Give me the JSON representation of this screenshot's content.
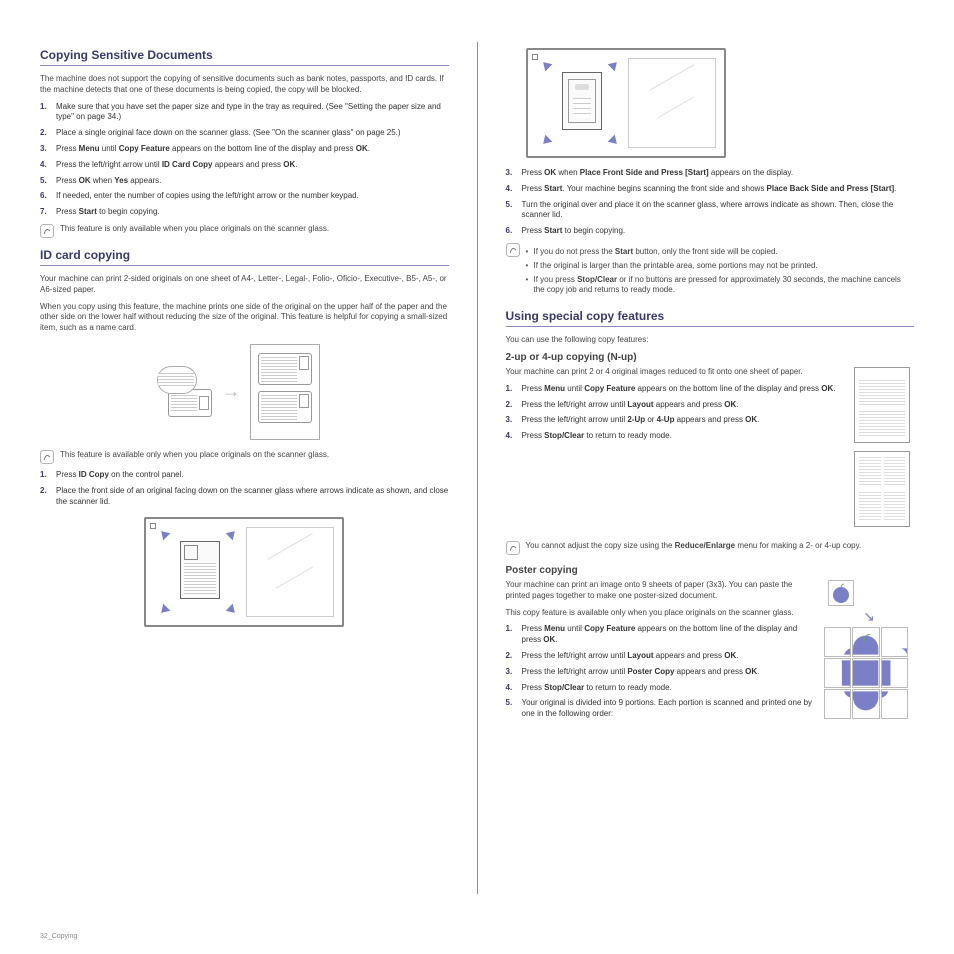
{
  "left": {
    "section1": {
      "title": "Copying Sensitive Documents",
      "intro": "The machine does not support the copying of sensitive documents such as bank notes, passports, and ID cards. If the machine detects that one of these documents is being copied, the copy will be blocked.",
      "steps": [
        "Make sure that you have set the paper size and type in the tray as required. (See \"Setting the paper size and type\" on page 34.)",
        "Place a single original face down on the scanner glass. (See \"On the scanner glass\" on page 25.)",
        "Press <strong>Menu</strong> until <strong>Copy Feature</strong> appears on the bottom line of the display and press <strong>OK</strong>.",
        "Press the left/right arrow until <strong>ID Card Copy</strong> appears and press <strong>OK</strong>.",
        "Press <strong>OK</strong> when <strong>Yes</strong> appears.",
        "If needed, enter the number of copies using the left/right arrow or the number keypad.",
        "Press <strong>Start</strong> to begin copying."
      ],
      "note": "This feature is only available when you place originals on the scanner glass."
    },
    "section2": {
      "title": "ID card copying",
      "intro1": "Your machine can print 2-sided originals on one sheet of A4-, Letter-, Legal-, Folio-, Oficio-, Executive-, B5-, A5-, or A6-sized paper.",
      "intro2": "When you copy using this feature, the machine prints one side of the original on the upper half of the paper and the other side on the lower half without reducing the size of the original. This feature is helpful for copying a small-sized item, such as a name card.",
      "note": "This feature is available only when you place originals on the scanner glass.",
      "steps": [
        "Press <strong>ID Copy</strong> on the control panel.",
        "Place the front side of an original facing down on the scanner glass where arrows indicate as shown, and close the scanner lid."
      ]
    }
  },
  "rightTop": {
    "steps_cont": [
      "Press <strong>OK</strong> when <strong>Place Front Side and Press [Start]</strong> appears on the display.",
      "Press <strong>Start</strong>. Your machine begins scanning the front side and shows <strong>Place Back Side and Press [Start]</strong>.",
      "Turn the original over and place it on the scanner glass, where arrows indicate as shown. Then, close the scanner lid.",
      "Press <strong>Start</strong> to begin copying."
    ],
    "notes": [
      "If you do not press the <strong>Start</strong> button, only the front side will be copied.",
      "If the original is larger than the printable area, some portions may not be printed.",
      "If you press <strong>Stop/Clear</strong> or if no buttons are pressed for approximately 30 seconds, the machine cancels the copy job and returns to ready mode."
    ]
  },
  "rightSection": {
    "title": "Using special copy features",
    "intro": "You can use the following copy features:",
    "sub1": {
      "heading": "2-up or 4-up copying (N-up)",
      "body": "Your machine can print 2 or 4 original images reduced to fit onto one sheet of paper.",
      "steps": [
        "Press <strong>Menu</strong> until <strong>Copy Feature</strong> appears on the bottom line of the display and press <strong>OK</strong>.",
        "Press the left/right arrow until <strong>Layout</strong> appears and press <strong>OK</strong>.",
        "Press the left/right arrow until <strong>2-Up</strong> or <strong>4-Up</strong> appears and press <strong>OK</strong>.",
        "Press <strong>Stop/Clear</strong> to return to ready mode."
      ],
      "note": "You cannot adjust the copy size using the <strong>Reduce/Enlarge</strong> menu for making a 2- or 4-up copy."
    },
    "sub2": {
      "heading": "Poster copying",
      "body1": "Your machine can print an image onto 9 sheets of paper (3x3). You can paste the printed pages together to make one poster-sized document.",
      "body2": "This copy feature is available only when you place originals on the scanner glass.",
      "steps": [
        "Press <strong>Menu</strong> until <strong>Copy Feature</strong> appears on the bottom line of the display and press <strong>OK</strong>.",
        "Press the left/right arrow until <strong>Layout</strong> appears and press <strong>OK</strong>.",
        "Press the left/right arrow until <strong>Poster Copy</strong> appears and press <strong>OK</strong>.",
        "Press <strong>Stop/Clear</strong> to return to ready mode.",
        "Your original is divided into 9 portions. Each portion is scanned and printed one by one in the following order:"
      ]
    }
  },
  "footer": {
    "pagenum": "32_",
    "label": "Copying"
  }
}
